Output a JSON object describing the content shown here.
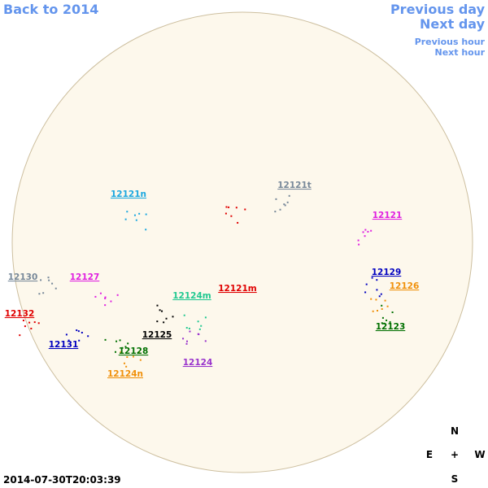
{
  "nav": {
    "back": "Back to 2014",
    "previous_day": "Previous day",
    "next_day": "Next day",
    "previous_hour": "Previous hour",
    "next_hour": "Next hour"
  },
  "regions": [
    {
      "label": "12121t",
      "color": "#778899"
    },
    {
      "label": "12121n",
      "color": "#1aa7e0"
    },
    {
      "label": "12121",
      "color": "#e020e0"
    },
    {
      "label": "12130",
      "color": "#778899"
    },
    {
      "label": "12127",
      "color": "#e020e0"
    },
    {
      "label": "12129",
      "color": "#0000c0"
    },
    {
      "label": "12126",
      "color": "#f0900a"
    },
    {
      "label": "12124m",
      "color": "#20c890"
    },
    {
      "label": "12121m",
      "color": "#e00000"
    },
    {
      "label": "12132",
      "color": "#e00000"
    },
    {
      "label": "12125",
      "color": "#000000"
    },
    {
      "label": "12131",
      "color": "#0000c0"
    },
    {
      "label": "12123",
      "color": "#007000"
    },
    {
      "label": "12128",
      "color": "#007000"
    },
    {
      "label": "12124",
      "color": "#9933cc"
    },
    {
      "label": "12124n",
      "color": "#f0900a"
    }
  ],
  "compass": {
    "north": "N",
    "east": "E",
    "center": "+",
    "west": "W",
    "south": "S"
  },
  "timestamp": "2014-07-30T20:03:39"
}
